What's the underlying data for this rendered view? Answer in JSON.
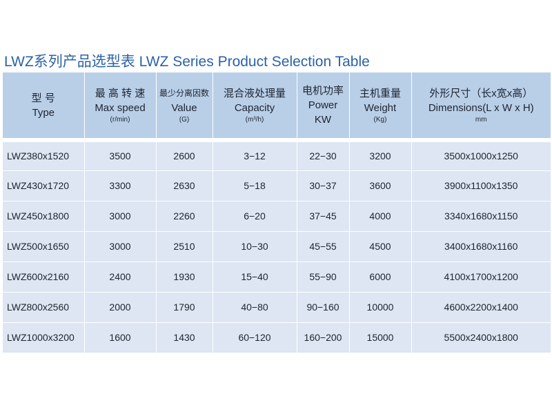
{
  "title": "LWZ系列产品选型表  LWZ Series Product Selection Table",
  "headers": [
    {
      "cn": "型 号",
      "en": "Type",
      "unit": ""
    },
    {
      "cn": "最 高 转 速",
      "en": "Max speed",
      "unit": "(r/min)"
    },
    {
      "cn": "最少分离因数",
      "en": "Value",
      "unit": "(G)"
    },
    {
      "cn": "混合液处理量",
      "en": "Capacity",
      "unit": "(m³/h)"
    },
    {
      "cn": "电机功率",
      "en": "Power",
      "unit": "KW"
    },
    {
      "cn": "主机重量",
      "en": "Weight",
      "unit": "(Kg)"
    },
    {
      "cn": "外形尺寸（长x宽x高）",
      "en": "Dimensions(L x W x H)",
      "unit": "mm"
    }
  ],
  "rows": [
    [
      "LWZ380x1520",
      "3500",
      "2600",
      "3−12",
      "22−30",
      "3200",
      "3500x1000x1250"
    ],
    [
      "LWZ430x1720",
      "3300",
      "2630",
      "5−18",
      "30−37",
      "3600",
      "3900x1100x1350"
    ],
    [
      "LWZ450x1800",
      "3000",
      "2260",
      "6−20",
      "37−45",
      "4000",
      "3340x1680x1150"
    ],
    [
      "LWZ500x1650",
      "3000",
      "2510",
      "10−30",
      "45−55",
      "4500",
      "3400x1680x1160"
    ],
    [
      "LWZ600x2160",
      "2400",
      "1930",
      "15−40",
      "55−90",
      "6000",
      "4100x1700x1200"
    ],
    [
      "LWZ800x2560",
      "2000",
      "1790",
      "40−80",
      "90−160",
      "10000",
      "4600x2200x1400"
    ],
    [
      "LWZ1000x3200",
      "1600",
      "1430",
      "60−120",
      "160−200",
      "15000",
      "5500x2400x1800"
    ]
  ]
}
